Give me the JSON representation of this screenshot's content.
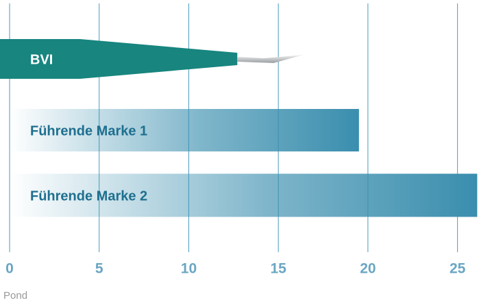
{
  "chart_data": {
    "type": "bar",
    "orientation": "horizontal",
    "categories": [
      "BVI",
      "Führende Marke 1",
      "Führende Marke 2"
    ],
    "values": [
      16.4,
      19.5,
      26.1
    ],
    "colors": [
      "#18857f",
      "#3a8eae",
      "#3a8eae"
    ],
    "xlim": [
      0,
      26.2
    ],
    "xticks": [
      0,
      5,
      10,
      15,
      20,
      25
    ],
    "x_label": "Pond",
    "grid": true
  }
}
